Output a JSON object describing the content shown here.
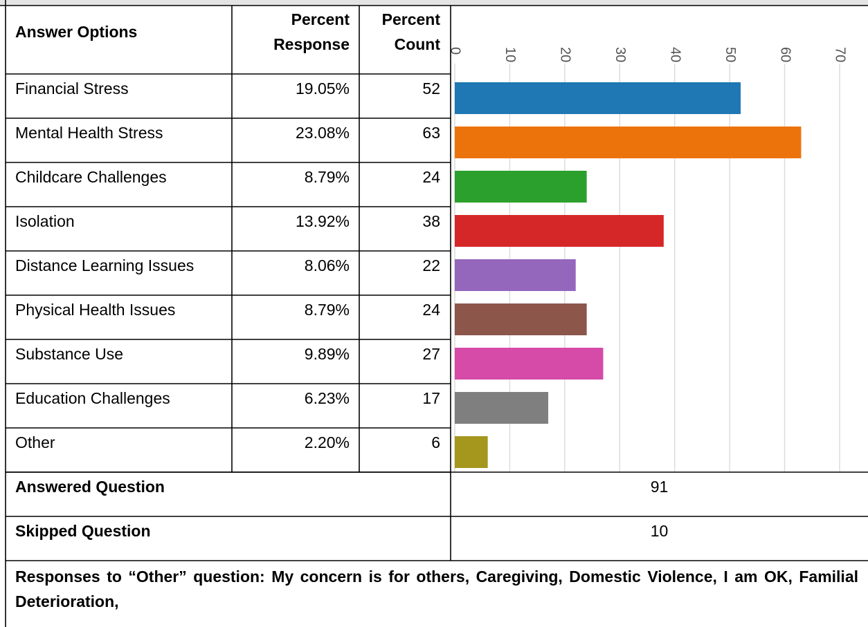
{
  "table": {
    "headers": [
      "Answer Options",
      "Percent Response",
      "Percent Count"
    ],
    "percent_response": [
      "19.05%",
      "23.08%",
      "8.79%",
      "13.92%",
      "8.06%",
      "8.79%",
      "9.89%",
      "6.23%",
      "2.20%"
    ]
  },
  "chart_data": {
    "type": "bar",
    "orientation": "horizontal",
    "categories": [
      "Financial Stress",
      "Mental Health Stress",
      "Childcare Challenges",
      "Isolation",
      "Distance Learning Issues",
      "Physical Health Issues",
      "Substance Use",
      "Education Challenges",
      "Other"
    ],
    "values": [
      52,
      63,
      24,
      38,
      22,
      24,
      27,
      17,
      6
    ],
    "colors": [
      "#1f77b4",
      "#ec730b",
      "#2ca02c",
      "#d62728",
      "#9467bd",
      "#8c564b",
      "#d64aa8",
      "#7f7f7f",
      "#a5961d"
    ],
    "xlim": [
      0,
      70
    ],
    "xticks": [
      0,
      10,
      20,
      30,
      40,
      50,
      60,
      70
    ],
    "grid": true
  },
  "summary": [
    {
      "label": "Answered Question",
      "value": 91
    },
    {
      "label": "Skipped Question",
      "value": 10
    }
  ],
  "note": "Responses to “Other” question: My concern is for others, Caregiving, Domestic Violence, I am OK, Familial Deterioration,"
}
